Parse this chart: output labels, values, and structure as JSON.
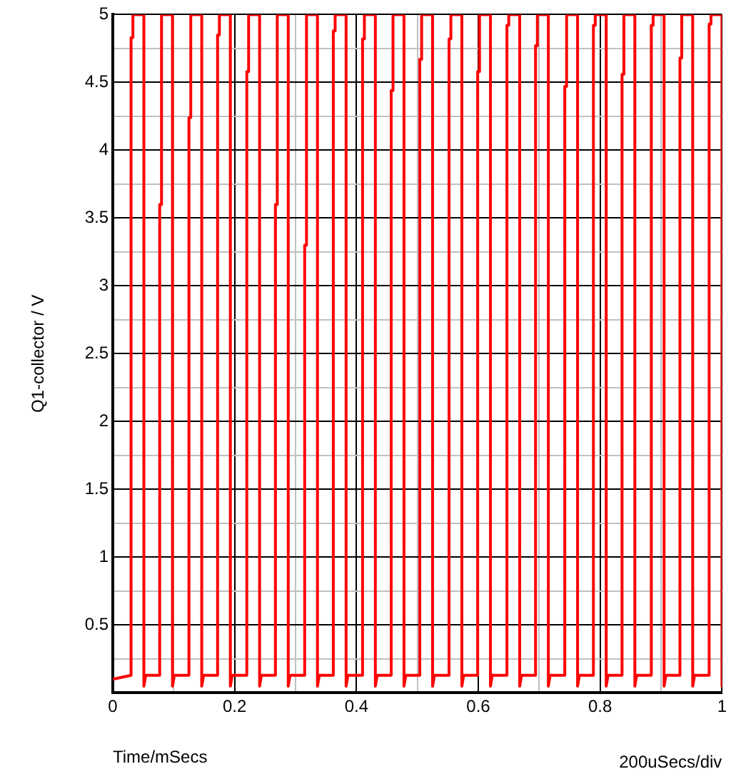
{
  "chart_data": {
    "type": "line",
    "xlabel": "Time/mSecs",
    "ylabel": "Q1-collector / V",
    "annotations": [
      "200uSecs/div"
    ],
    "grid": true,
    "legend": false,
    "marker": "none",
    "line_style": "solid",
    "xlim": [
      0,
      1
    ],
    "xticks": [
      0,
      {
        "value": 0.1,
        "label": null
      },
      0.2,
      {
        "value": 0.3,
        "label": null
      },
      0.4,
      {
        "value": 0.5,
        "label": null
      },
      0.6,
      {
        "value": 0.7,
        "label": null
      },
      0.8,
      {
        "value": 0.9,
        "label": null
      },
      1
    ],
    "ylim": [
      0,
      5
    ],
    "yticks": [
      {
        "value": 0.25,
        "label": null
      },
      0.5,
      {
        "value": 0.75,
        "label": null
      },
      1,
      {
        "value": 1.25,
        "label": null
      },
      1.5,
      {
        "value": 1.75,
        "label": null
      },
      2,
      {
        "value": 2.25,
        "label": null
      },
      2.5,
      {
        "value": 2.75,
        "label": null
      },
      3,
      {
        "value": 3.25,
        "label": null
      },
      3.5,
      {
        "value": 3.75,
        "label": null
      },
      4,
      {
        "value": 4.25,
        "label": null
      },
      4.5,
      {
        "value": 4.75,
        "label": null
      },
      5
    ],
    "series": [
      {
        "color": "#ff0000",
        "x": [
          0,
          0.03,
          0.03,
          0.033,
          0.033,
          0.051,
          0.051,
          0.054,
          0.077,
          0.077,
          0.08,
          0.08,
          0.098,
          0.098,
          0.101,
          0.125,
          0.125,
          0.128,
          0.128,
          0.146,
          0.146,
          0.149,
          0.172,
          0.172,
          0.175,
          0.175,
          0.193,
          0.193,
          0.196,
          0.22,
          0.22,
          0.223,
          0.223,
          0.241,
          0.241,
          0.244,
          0.267,
          0.267,
          0.27,
          0.27,
          0.288,
          0.288,
          0.291,
          0.315,
          0.315,
          0.318,
          0.318,
          0.336,
          0.336,
          0.339,
          0.362,
          0.362,
          0.365,
          0.365,
          0.383,
          0.383,
          0.386,
          0.41,
          0.41,
          0.413,
          0.413,
          0.431,
          0.431,
          0.434,
          0.457,
          0.457,
          0.46,
          0.46,
          0.478,
          0.478,
          0.481,
          0.504,
          0.504,
          0.507,
          0.507,
          0.525,
          0.525,
          0.528,
          0.552,
          0.552,
          0.555,
          0.555,
          0.573,
          0.573,
          0.576,
          0.599,
          0.599,
          0.602,
          0.602,
          0.62,
          0.62,
          0.623,
          0.647,
          0.647,
          0.65,
          0.65,
          0.668,
          0.668,
          0.671,
          0.694,
          0.694,
          0.697,
          0.697,
          0.715,
          0.715,
          0.718,
          0.742,
          0.742,
          0.745,
          0.745,
          0.763,
          0.763,
          0.766,
          0.789,
          0.789,
          0.792,
          0.792,
          0.81,
          0.81,
          0.813,
          0.836,
          0.836,
          0.839,
          0.839,
          0.857,
          0.857,
          0.86,
          0.884,
          0.884,
          0.887,
          0.887,
          0.905,
          0.905,
          0.908,
          0.931,
          0.931,
          0.934,
          0.934,
          0.952,
          0.952,
          0.955,
          0.979,
          0.979,
          0.982,
          0.982,
          1,
          1
        ],
        "values": [
          0.1,
          0.13,
          4.83,
          4.83,
          5,
          5,
          0.05,
          0.13,
          0.13,
          3.6,
          3.6,
          5,
          5,
          0.05,
          0.13,
          0.13,
          4.24,
          4.24,
          5,
          5,
          0.05,
          0.13,
          0.13,
          4.85,
          4.85,
          5,
          5,
          0.05,
          0.13,
          0.13,
          4.58,
          4.58,
          5,
          5,
          0.05,
          0.13,
          0.13,
          3.6,
          3.6,
          5,
          5,
          0.05,
          0.13,
          0.13,
          3.3,
          3.3,
          5,
          5,
          0.05,
          0.13,
          0.13,
          4.88,
          4.88,
          5,
          5,
          0.05,
          0.13,
          0.13,
          4.82,
          4.82,
          5,
          5,
          0.05,
          0.13,
          0.13,
          4.44,
          4.44,
          5,
          5,
          0.05,
          0.13,
          0.13,
          4.67,
          4.67,
          5,
          5,
          0.05,
          0.13,
          0.13,
          4.82,
          4.82,
          5,
          5,
          0.05,
          0.13,
          0.13,
          4.58,
          4.58,
          5,
          5,
          0.05,
          0.13,
          0.13,
          4.92,
          4.92,
          5,
          5,
          0.05,
          0.13,
          0.13,
          4.77,
          4.77,
          5,
          5,
          0.05,
          0.13,
          0.13,
          4.47,
          4.47,
          5,
          5,
          0.05,
          0.13,
          0.13,
          4.92,
          4.92,
          5,
          5,
          0.05,
          0.13,
          0.13,
          4.56,
          4.56,
          5,
          5,
          0.05,
          0.13,
          0.13,
          4.92,
          4.92,
          5,
          5,
          0.05,
          0.13,
          0.13,
          4.68,
          4.68,
          5,
          5,
          0.05,
          0.13,
          0.13,
          4.93,
          4.93,
          5,
          5,
          0.05
        ]
      }
    ]
  }
}
